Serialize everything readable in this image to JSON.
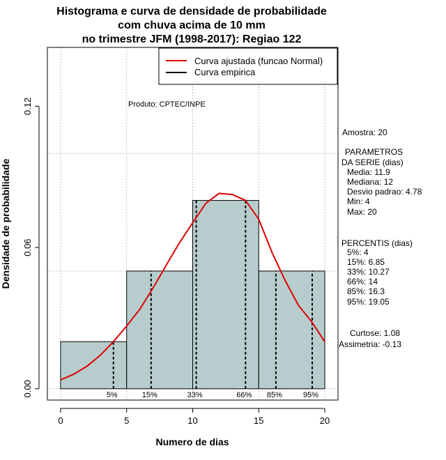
{
  "chart_data": {
    "type": "bar",
    "title_lines": [
      "Histograma e curva de densidade de probabilidade",
      "com chuva acima de 10 mm",
      "no trimestre JFM (1998-2017): Regiao 122"
    ],
    "xlabel": "Numero de dias",
    "ylabel": "Densidade de probabilidade",
    "xlim": [
      -1,
      21
    ],
    "ylim": [
      -0.0048,
      0.145
    ],
    "xticks": [
      0,
      5,
      10,
      15,
      20
    ],
    "yticks": [
      0.0,
      0.06,
      0.12
    ],
    "ytick_labels": [
      "0.00",
      "0.06",
      "0.12"
    ],
    "grid": true,
    "bins": [
      {
        "x0": 0,
        "x1": 5,
        "density": 0.02
      },
      {
        "x0": 5,
        "x1": 10,
        "density": 0.05
      },
      {
        "x0": 10,
        "x1": 15,
        "density": 0.08
      },
      {
        "x0": 15,
        "x1": 20,
        "density": 0.05
      }
    ],
    "series": [
      {
        "name": "Curva ajustada (funcao Normal)",
        "color": "#e00000",
        "x": [
          0,
          1,
          2,
          3,
          4,
          5,
          6,
          7,
          8,
          9,
          10,
          11,
          12,
          13,
          14,
          15,
          16,
          17,
          18,
          19,
          20
        ],
        "y": [
          0.0038,
          0.0062,
          0.0096,
          0.0142,
          0.02,
          0.0266,
          0.0338,
          0.0428,
          0.0525,
          0.062,
          0.0705,
          0.0788,
          0.083,
          0.0825,
          0.08,
          0.072,
          0.058,
          0.046,
          0.0355,
          0.0285,
          0.02
        ]
      },
      {
        "name": "Curva empirica",
        "color": "#000000"
      }
    ],
    "percentile_markers": [
      {
        "label": "5%",
        "x": 4
      },
      {
        "label": "15%",
        "x": 6.85
      },
      {
        "label": "33%",
        "x": 10.27
      },
      {
        "label": "66%",
        "x": 14
      },
      {
        "label": "85%",
        "x": 16.3
      },
      {
        "label": "95%",
        "x": 19.05
      }
    ],
    "annotation": "Produto: CPTEC/INPE",
    "legend_position": "top-right",
    "bar_color": "#b7cdcd"
  },
  "stats_panel": {
    "amostra": "Amostra: 20",
    "parametros_title_1": "PARAMETROS",
    "parametros_title_2": "DA SERIE (dias)",
    "media": "Media: 11.9",
    "mediana": "Mediana: 12",
    "desvio": "Desvio padrao: 4.78",
    "min": "Min: 4",
    "max": "Max: 20",
    "percentis_title": "PERCENTIS (dias)",
    "p5": "5%: 4",
    "p15": "15%: 6.85",
    "p33": "33%: 10.27",
    "p66": "66%: 14",
    "p85": "85%: 16.3",
    "p95": "95%: 19.05",
    "curtose": "Curtose: 1.08",
    "assimetria": "Assimetria: -0.13"
  }
}
